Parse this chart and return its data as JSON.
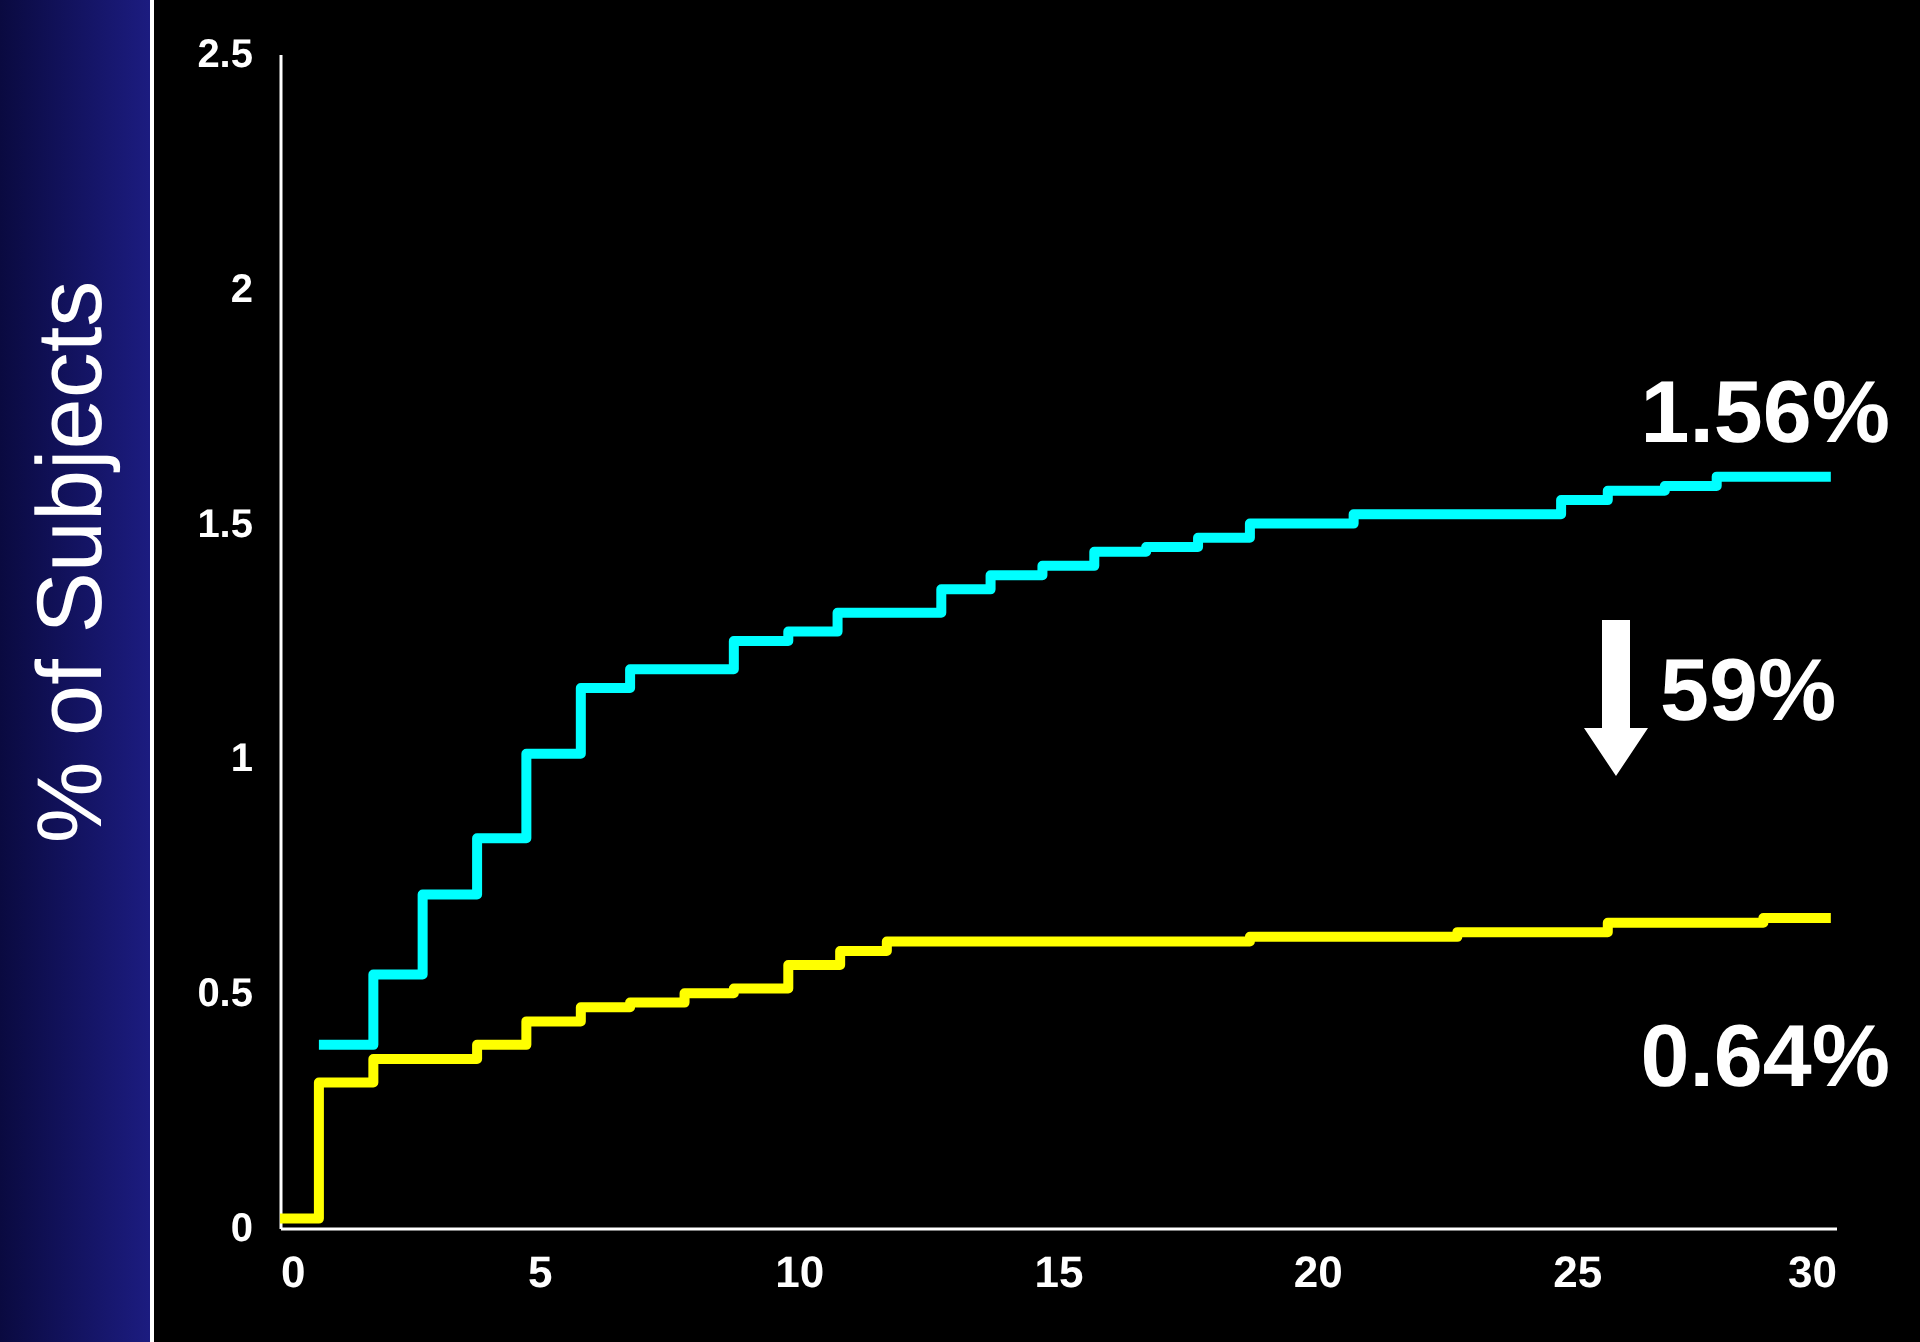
{
  "chart_data": {
    "type": "step",
    "ylabel": "% of Subjects",
    "xlim": [
      0,
      30
    ],
    "xticks": [
      0,
      5,
      10,
      15,
      20,
      25,
      30
    ],
    "ylim": [
      0,
      2.5
    ],
    "yticks": [
      0,
      0.5,
      1,
      1.5,
      2,
      2.5
    ],
    "grid": false,
    "legend": false,
    "series": [
      {
        "color": "#00ffff",
        "x": [
          0.75,
          1.8,
          2.75,
          3.8,
          4.75,
          5.8,
          6.75,
          8.75,
          9.8,
          10.75,
          12.75,
          13.7,
          14.7,
          15.7,
          16.7,
          17.7,
          18.7,
          20.7,
          24.7,
          25.6,
          26.7,
          27.7,
          29.9
        ],
        "values": [
          0.39,
          0.54,
          0.71,
          0.83,
          1.01,
          1.15,
          1.19,
          1.25,
          1.27,
          1.31,
          1.36,
          1.39,
          1.41,
          1.44,
          1.45,
          1.47,
          1.5,
          1.52,
          1.55,
          1.57,
          1.58,
          1.6,
          1.6
        ]
      },
      {
        "color": "#ffff00",
        "x": [
          0,
          0.75,
          1.8,
          3.8,
          4.75,
          5.8,
          6.75,
          7.8,
          8.75,
          9.8,
          10.8,
          11.7,
          18.7,
          22.7,
          25.6,
          28.6,
          29.9
        ],
        "values": [
          0.02,
          0.31,
          0.36,
          0.39,
          0.44,
          0.47,
          0.48,
          0.5,
          0.51,
          0.56,
          0.59,
          0.61,
          0.62,
          0.63,
          0.65,
          0.66,
          0.66
        ]
      }
    ],
    "annotations": [
      "1.56%",
      "59%",
      "0.64%"
    ]
  }
}
